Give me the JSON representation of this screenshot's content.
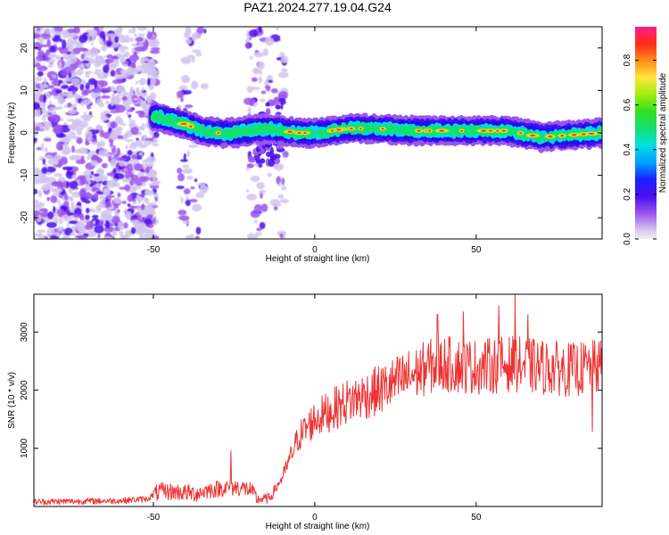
{
  "title": "PAZ1.2024.277.19.04.G24",
  "chart_data": [
    {
      "type": "heatmap",
      "title": "PAZ1.2024.277.19.04.G24",
      "xlabel": "Height of straight line (km)",
      "ylabel": "Frequency (Hz)",
      "xlim": [
        -87,
        89
      ],
      "ylim": [
        -25,
        25
      ],
      "xticks": [
        -50,
        0,
        50
      ],
      "xtick_labels": [
        "-50",
        "0",
        "50"
      ],
      "yticks": [
        -20,
        -10,
        0,
        10,
        20
      ],
      "ytick_labels": [
        "-20",
        "-10",
        "0",
        "10",
        "20"
      ],
      "colorbar": {
        "label": "Normalized spectral amplitude",
        "range": [
          0,
          0.95
        ],
        "ticks": [
          0,
          0.2,
          0.4,
          0.6,
          0.8
        ],
        "tick_labels": [
          "0.0",
          "0.2",
          "0.4",
          "0.6",
          "0.8"
        ]
      },
      "noise_regions_x": [
        [
          -87,
          -49
        ],
        [
          -42,
          -34
        ],
        [
          -21,
          -9
        ]
      ],
      "ridge_x_range": [
        -50,
        89
      ],
      "ridge": [
        {
          "x": -50,
          "y": 4
        },
        {
          "x": -45,
          "y": 3
        },
        {
          "x": -40,
          "y": 2
        },
        {
          "x": -35,
          "y": 0.5
        },
        {
          "x": -30,
          "y": 0
        },
        {
          "x": -25,
          "y": 0
        },
        {
          "x": -20,
          "y": 0.5
        },
        {
          "x": -15,
          "y": 1
        },
        {
          "x": -10,
          "y": 0.5
        },
        {
          "x": -5,
          "y": 0
        },
        {
          "x": 0,
          "y": 0
        },
        {
          "x": 10,
          "y": 1
        },
        {
          "x": 20,
          "y": 1
        },
        {
          "x": 30,
          "y": 0.5
        },
        {
          "x": 40,
          "y": 0.5
        },
        {
          "x": 50,
          "y": 0.5
        },
        {
          "x": 60,
          "y": 0.5
        },
        {
          "x": 70,
          "y": -1
        },
        {
          "x": 80,
          "y": -0.5
        },
        {
          "x": 89,
          "y": 0
        }
      ]
    },
    {
      "type": "line",
      "title": "",
      "xlabel": "Height of straight line (km)",
      "ylabel": "SNR (10 * v/v)",
      "xlim": [
        -87,
        89
      ],
      "ylim": [
        0,
        3650
      ],
      "xticks": [
        -50,
        0,
        50
      ],
      "xtick_labels": [
        "-50",
        "0",
        "50"
      ],
      "yticks": [
        1000,
        2000,
        3000
      ],
      "ytick_labels": [
        "1000",
        "2000",
        "3000"
      ],
      "series": [
        {
          "color": "#ee3333",
          "trend": [
            {
              "x": -87,
              "y": 80
            },
            {
              "x": -60,
              "y": 100
            },
            {
              "x": -52,
              "y": 130
            },
            {
              "x": -48,
              "y": 260
            },
            {
              "x": -42,
              "y": 250
            },
            {
              "x": -37,
              "y": 220
            },
            {
              "x": -33,
              "y": 280
            },
            {
              "x": -28,
              "y": 320
            },
            {
              "x": -24,
              "y": 330
            },
            {
              "x": -20,
              "y": 290
            },
            {
              "x": -18,
              "y": 120
            },
            {
              "x": -14,
              "y": 140
            },
            {
              "x": -10,
              "y": 500
            },
            {
              "x": -5,
              "y": 1200
            },
            {
              "x": 0,
              "y": 1500
            },
            {
              "x": 5,
              "y": 1650
            },
            {
              "x": 10,
              "y": 1800
            },
            {
              "x": 20,
              "y": 2000
            },
            {
              "x": 30,
              "y": 2250
            },
            {
              "x": 35,
              "y": 2400
            },
            {
              "x": 40,
              "y": 2450
            },
            {
              "x": 50,
              "y": 2400
            },
            {
              "x": 60,
              "y": 2450
            },
            {
              "x": 70,
              "y": 2400
            },
            {
              "x": 80,
              "y": 2350
            },
            {
              "x": 89,
              "y": 2400
            }
          ],
          "spikes": [
            {
              "x": -26,
              "y": 960
            },
            {
              "x": 38,
              "y": 3300
            },
            {
              "x": 46,
              "y": 3350
            },
            {
              "x": 57,
              "y": 3450
            },
            {
              "x": 62,
              "y": 3650
            },
            {
              "x": 66,
              "y": 3300
            },
            {
              "x": 86,
              "y": 1290
            }
          ]
        }
      ]
    }
  ],
  "colors": {
    "line": "#ee3333",
    "colormap": [
      "#d1c4ee",
      "#9a55ee",
      "#4a10ee",
      "#1a10f0",
      "#00d8ff",
      "#14e070",
      "#8aee1a",
      "#ffe63c",
      "#ff8c1c",
      "#ff2a14",
      "#ff1c90"
    ]
  }
}
